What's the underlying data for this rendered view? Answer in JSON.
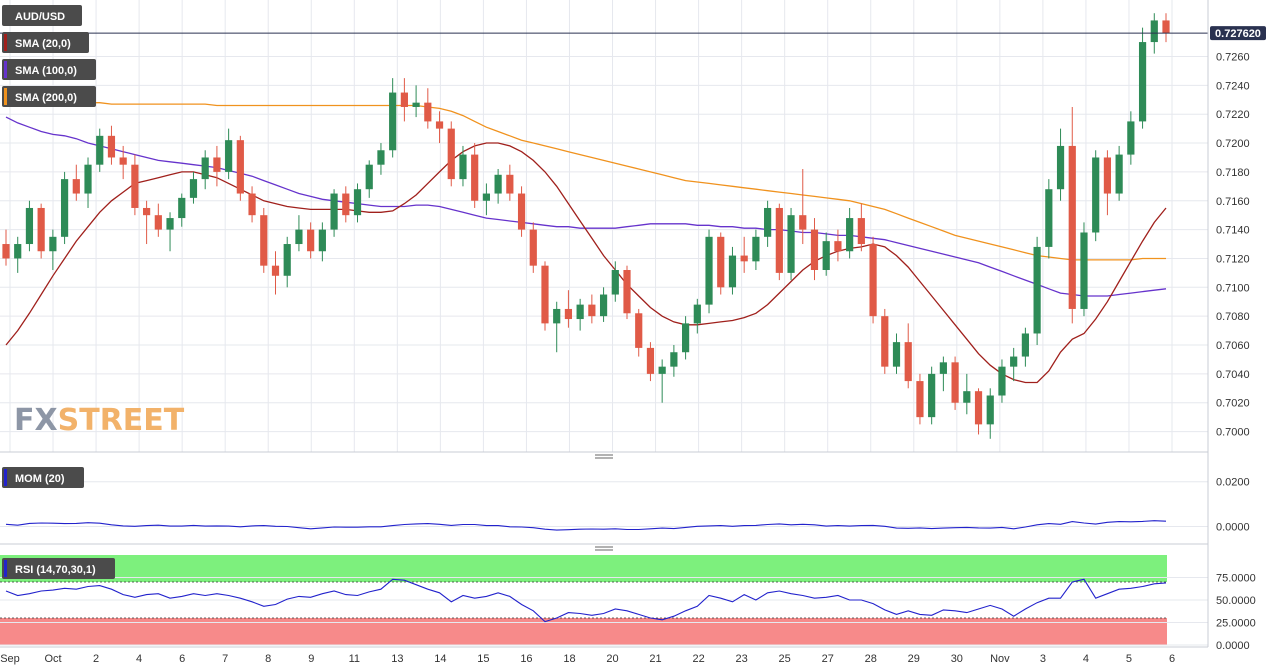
{
  "chart_data": [
    {
      "type": "candlestick",
      "title": "AUD/USD",
      "last_price": "0.727620",
      "watermark": {
        "prefix": "FX",
        "suffix": "STREET"
      },
      "ylim": [
        0.699,
        0.7295
      ],
      "y_ticks": [
        "0.7000",
        "0.7020",
        "0.7040",
        "0.7060",
        "0.7080",
        "0.7100",
        "0.7120",
        "0.7140",
        "0.7160",
        "0.7180",
        "0.7200",
        "0.7220",
        "0.7240",
        "0.7260"
      ],
      "x_labels": [
        "Sep",
        "Oct",
        "2",
        "4",
        "6",
        "7",
        "8",
        "9",
        "11",
        "13",
        "14",
        "15",
        "16",
        "18",
        "20",
        "21",
        "22",
        "23",
        "25",
        "27",
        "28",
        "29",
        "30",
        "Nov",
        "3",
        "4",
        "5",
        "6"
      ],
      "colors": {
        "up": "#2e8b57",
        "down": "#e05a47",
        "sma20": "#a0201c",
        "sma100": "#6633cc",
        "sma200": "#f0921e",
        "last_line": "#2a3250"
      },
      "legend": [
        {
          "name": "SMA (20,0)",
          "color": "#a0201c"
        },
        {
          "name": "SMA (100,0)",
          "color": "#6633cc"
        },
        {
          "name": "SMA (200,0)",
          "color": "#f0921e"
        }
      ],
      "candles": [
        [
          0.713,
          0.714,
          0.7115,
          0.712
        ],
        [
          0.712,
          0.7135,
          0.711,
          0.713
        ],
        [
          0.713,
          0.716,
          0.7125,
          0.7155
        ],
        [
          0.7155,
          0.7158,
          0.712,
          0.7125
        ],
        [
          0.7125,
          0.714,
          0.7112,
          0.7135
        ],
        [
          0.7135,
          0.718,
          0.713,
          0.7175
        ],
        [
          0.7175,
          0.7185,
          0.716,
          0.7165
        ],
        [
          0.7165,
          0.719,
          0.7155,
          0.7185
        ],
        [
          0.7185,
          0.721,
          0.718,
          0.7205
        ],
        [
          0.7205,
          0.7212,
          0.7185,
          0.719
        ],
        [
          0.719,
          0.7198,
          0.7175,
          0.7185
        ],
        [
          0.7185,
          0.7192,
          0.715,
          0.7155
        ],
        [
          0.7155,
          0.716,
          0.713,
          0.715
        ],
        [
          0.715,
          0.7158,
          0.7135,
          0.714
        ],
        [
          0.714,
          0.7152,
          0.7125,
          0.7148
        ],
        [
          0.7148,
          0.7165,
          0.7142,
          0.7162
        ],
        [
          0.7162,
          0.718,
          0.7158,
          0.7175
        ],
        [
          0.7175,
          0.7195,
          0.7168,
          0.719
        ],
        [
          0.719,
          0.7198,
          0.717,
          0.718
        ],
        [
          0.718,
          0.721,
          0.7175,
          0.7202
        ],
        [
          0.7202,
          0.7205,
          0.716,
          0.7165
        ],
        [
          0.7165,
          0.717,
          0.7145,
          0.715
        ],
        [
          0.715,
          0.7155,
          0.711,
          0.7115
        ],
        [
          0.7115,
          0.7125,
          0.7095,
          0.7108
        ],
        [
          0.7108,
          0.7135,
          0.71,
          0.713
        ],
        [
          0.713,
          0.715,
          0.7125,
          0.714
        ],
        [
          0.714,
          0.7145,
          0.712,
          0.7125
        ],
        [
          0.7125,
          0.7145,
          0.7118,
          0.714
        ],
        [
          0.714,
          0.7168,
          0.7135,
          0.7165
        ],
        [
          0.7165,
          0.717,
          0.7145,
          0.715
        ],
        [
          0.715,
          0.7172,
          0.7145,
          0.7168
        ],
        [
          0.7168,
          0.7188,
          0.7162,
          0.7185
        ],
        [
          0.7185,
          0.72,
          0.7178,
          0.7195
        ],
        [
          0.7195,
          0.7245,
          0.719,
          0.7235
        ],
        [
          0.7235,
          0.7245,
          0.7215,
          0.7225
        ],
        [
          0.7225,
          0.724,
          0.7218,
          0.7228
        ],
        [
          0.7228,
          0.7238,
          0.721,
          0.7215
        ],
        [
          0.7215,
          0.7222,
          0.72,
          0.721
        ],
        [
          0.721,
          0.7215,
          0.717,
          0.7175
        ],
        [
          0.7175,
          0.7198,
          0.717,
          0.7192
        ],
        [
          0.7192,
          0.72,
          0.7155,
          0.716
        ],
        [
          0.716,
          0.7172,
          0.715,
          0.7165
        ],
        [
          0.7165,
          0.7182,
          0.7158,
          0.7178
        ],
        [
          0.7178,
          0.7185,
          0.716,
          0.7165
        ],
        [
          0.7165,
          0.717,
          0.7135,
          0.714
        ],
        [
          0.714,
          0.7145,
          0.711,
          0.7115
        ],
        [
          0.7115,
          0.7118,
          0.707,
          0.7075
        ],
        [
          0.7075,
          0.709,
          0.7055,
          0.7085
        ],
        [
          0.7085,
          0.7098,
          0.7072,
          0.7078
        ],
        [
          0.7078,
          0.7092,
          0.707,
          0.7088
        ],
        [
          0.7088,
          0.7095,
          0.7075,
          0.708
        ],
        [
          0.708,
          0.71,
          0.7076,
          0.7095
        ],
        [
          0.7095,
          0.7118,
          0.709,
          0.7112
        ],
        [
          0.7112,
          0.7115,
          0.7078,
          0.7082
        ],
        [
          0.7082,
          0.7085,
          0.7052,
          0.7058
        ],
        [
          0.7058,
          0.7062,
          0.7035,
          0.704
        ],
        [
          0.704,
          0.705,
          0.702,
          0.7045
        ],
        [
          0.7045,
          0.706,
          0.7038,
          0.7055
        ],
        [
          0.7055,
          0.708,
          0.705,
          0.7075
        ],
        [
          0.7075,
          0.7092,
          0.7068,
          0.7088
        ],
        [
          0.7088,
          0.714,
          0.7082,
          0.7135
        ],
        [
          0.7135,
          0.7138,
          0.7095,
          0.71
        ],
        [
          0.71,
          0.7128,
          0.7095,
          0.7122
        ],
        [
          0.7122,
          0.7135,
          0.711,
          0.7118
        ],
        [
          0.7118,
          0.714,
          0.7112,
          0.7135
        ],
        [
          0.7135,
          0.716,
          0.7128,
          0.7155
        ],
        [
          0.7155,
          0.7158,
          0.7105,
          0.711
        ],
        [
          0.711,
          0.7155,
          0.7105,
          0.715
        ],
        [
          0.715,
          0.7182,
          0.713,
          0.714
        ],
        [
          0.714,
          0.7148,
          0.7105,
          0.7112
        ],
        [
          0.7112,
          0.7138,
          0.7108,
          0.7132
        ],
        [
          0.7132,
          0.714,
          0.7118,
          0.7125
        ],
        [
          0.7125,
          0.7155,
          0.712,
          0.7148
        ],
        [
          0.7148,
          0.7158,
          0.7125,
          0.713
        ],
        [
          0.713,
          0.7135,
          0.7075,
          0.708
        ],
        [
          0.708,
          0.7085,
          0.704,
          0.7045
        ],
        [
          0.7045,
          0.7068,
          0.704,
          0.7062
        ],
        [
          0.7062,
          0.7075,
          0.703,
          0.7035
        ],
        [
          0.7035,
          0.704,
          0.7005,
          0.701
        ],
        [
          0.701,
          0.7045,
          0.7005,
          0.704
        ],
        [
          0.704,
          0.7052,
          0.7028,
          0.7048
        ],
        [
          0.7048,
          0.7052,
          0.7015,
          0.702
        ],
        [
          0.702,
          0.704,
          0.7012,
          0.7028
        ],
        [
          0.7028,
          0.703,
          0.6998,
          0.7005
        ],
        [
          0.7005,
          0.703,
          0.6995,
          0.7025
        ],
        [
          0.7025,
          0.705,
          0.702,
          0.7045
        ],
        [
          0.7045,
          0.7058,
          0.7035,
          0.7052
        ],
        [
          0.7052,
          0.7072,
          0.7045,
          0.7068
        ],
        [
          0.7068,
          0.7135,
          0.706,
          0.7128
        ],
        [
          0.7128,
          0.7175,
          0.712,
          0.7168
        ],
        [
          0.7168,
          0.721,
          0.716,
          0.7198
        ],
        [
          0.7198,
          0.7225,
          0.7075,
          0.7085
        ],
        [
          0.7085,
          0.7145,
          0.708,
          0.7138
        ],
        [
          0.7138,
          0.7195,
          0.7132,
          0.719
        ],
        [
          0.719,
          0.7195,
          0.715,
          0.7165
        ],
        [
          0.7165,
          0.7198,
          0.716,
          0.7192
        ],
        [
          0.7192,
          0.7222,
          0.7185,
          0.7215
        ],
        [
          0.7215,
          0.728,
          0.721,
          0.727
        ],
        [
          0.727,
          0.729,
          0.7262,
          0.7285
        ],
        [
          0.7285,
          0.729,
          0.727,
          0.7276
        ]
      ],
      "sma20": [
        0.706,
        0.707,
        0.7082,
        0.7095,
        0.7108,
        0.712,
        0.7132,
        0.7142,
        0.7152,
        0.716,
        0.7166,
        0.7172,
        0.7174,
        0.7176,
        0.7178,
        0.718,
        0.718,
        0.7178,
        0.7176,
        0.7172,
        0.7168,
        0.7164,
        0.716,
        0.7158,
        0.7156,
        0.7155,
        0.7154,
        0.7154,
        0.7154,
        0.7154,
        0.7153,
        0.7152,
        0.7152,
        0.7153,
        0.7158,
        0.7164,
        0.7172,
        0.718,
        0.7188,
        0.7194,
        0.7198,
        0.72,
        0.72,
        0.7198,
        0.7194,
        0.7188,
        0.718,
        0.717,
        0.7158,
        0.7146,
        0.7134,
        0.7122,
        0.7112,
        0.7102,
        0.7094,
        0.7086,
        0.708,
        0.7076,
        0.7074,
        0.7074,
        0.7075,
        0.7076,
        0.7077,
        0.7079,
        0.7082,
        0.7088,
        0.7096,
        0.7104,
        0.7112,
        0.7118,
        0.7122,
        0.7125,
        0.7127,
        0.7128,
        0.713,
        0.7128,
        0.7122,
        0.7114,
        0.7104,
        0.7094,
        0.7084,
        0.7074,
        0.7064,
        0.7054,
        0.7046,
        0.704,
        0.7036,
        0.7034,
        0.7034,
        0.7042,
        0.7055,
        0.7064,
        0.7068,
        0.7078,
        0.709,
        0.7104,
        0.7118,
        0.7132,
        0.7145,
        0.7155
      ],
      "sma100": [
        0.7218,
        0.7214,
        0.7211,
        0.7208,
        0.7206,
        0.7205,
        0.7203,
        0.72,
        0.7198,
        0.7196,
        0.7194,
        0.7192,
        0.719,
        0.7188,
        0.7187,
        0.7186,
        0.7185,
        0.7184,
        0.7183,
        0.7181,
        0.7179,
        0.7177,
        0.7174,
        0.7171,
        0.7168,
        0.7165,
        0.7163,
        0.7161,
        0.716,
        0.7159,
        0.7158,
        0.7157,
        0.7156,
        0.7156,
        0.7156,
        0.7157,
        0.7157,
        0.7156,
        0.7154,
        0.7152,
        0.715,
        0.7148,
        0.7147,
        0.7146,
        0.7145,
        0.7144,
        0.7143,
        0.7142,
        0.7142,
        0.7141,
        0.7141,
        0.7141,
        0.7141,
        0.7142,
        0.7143,
        0.7144,
        0.7144,
        0.7144,
        0.7144,
        0.7143,
        0.7143,
        0.7142,
        0.7142,
        0.7141,
        0.7141,
        0.714,
        0.714,
        0.7139,
        0.7138,
        0.7138,
        0.7137,
        0.7136,
        0.7136,
        0.7135,
        0.7134,
        0.7133,
        0.7131,
        0.7129,
        0.7127,
        0.7125,
        0.7123,
        0.7121,
        0.7119,
        0.7117,
        0.7114,
        0.7111,
        0.7108,
        0.7105,
        0.7102,
        0.7099,
        0.7096,
        0.7095,
        0.7094,
        0.7094,
        0.7094,
        0.7095,
        0.7096,
        0.7097,
        0.7098,
        0.7099
      ],
      "sma200": [
        0.7232,
        0.7231,
        0.723,
        0.723,
        0.7229,
        0.7229,
        0.7228,
        0.7228,
        0.7228,
        0.7227,
        0.7227,
        0.7227,
        0.7227,
        0.7227,
        0.7227,
        0.7227,
        0.7227,
        0.7227,
        0.7226,
        0.7226,
        0.7226,
        0.7226,
        0.7226,
        0.7226,
        0.7226,
        0.7226,
        0.7226,
        0.7226,
        0.7226,
        0.7226,
        0.7226,
        0.7226,
        0.7226,
        0.7226,
        0.7226,
        0.7226,
        0.7225,
        0.7224,
        0.7222,
        0.7219,
        0.7215,
        0.7211,
        0.7208,
        0.7205,
        0.7202,
        0.72,
        0.7198,
        0.7196,
        0.7194,
        0.7192,
        0.719,
        0.7188,
        0.7186,
        0.7184,
        0.7182,
        0.718,
        0.7178,
        0.7176,
        0.7174,
        0.7173,
        0.7172,
        0.7171,
        0.717,
        0.7169,
        0.7168,
        0.7167,
        0.7166,
        0.7165,
        0.7164,
        0.7163,
        0.7162,
        0.7161,
        0.716,
        0.7158,
        0.7156,
        0.7154,
        0.7151,
        0.7148,
        0.7145,
        0.7142,
        0.7139,
        0.7136,
        0.7134,
        0.7132,
        0.713,
        0.7128,
        0.7126,
        0.7124,
        0.7122,
        0.7121,
        0.712,
        0.7119,
        0.7119,
        0.7119,
        0.7119,
        0.7119,
        0.7119,
        0.712,
        0.712,
        0.712
      ]
    },
    {
      "type": "line",
      "title": "MOM (20)",
      "color": "#2222cc",
      "ylim": [
        -0.006,
        0.027
      ],
      "y_ticks": [
        "0.0200",
        "0.0000"
      ],
      "values": [
        0.001,
        0.0006,
        0.0014,
        0.0016,
        0.0015,
        0.0013,
        0.0014,
        0.0017,
        0.0015,
        0.0008,
        0.0003,
        0.0001,
        0.0004,
        0.0006,
        0.0002,
        0.0002,
        0.0005,
        0.0002,
        0.0003,
        0.0002,
        -0.0001,
        0.0003,
        0.0004,
        0.0001,
        0.0,
        -0.0005,
        -0.001,
        -0.0006,
        -0.0002,
        -0.0003,
        -0.0003,
        -0.0001,
        -0.0001,
        0.0004,
        0.0009,
        0.0012,
        0.0013,
        0.001,
        0.0005,
        0.0009,
        0.0009,
        0.0004,
        0.0004,
        -0.0001,
        -0.0002,
        -0.0005,
        -0.0012,
        -0.0016,
        -0.0014,
        -0.0012,
        -0.0011,
        -0.0012,
        -0.001,
        -0.0013,
        -0.0013,
        -0.001,
        -0.0007,
        -0.0009,
        -0.0004,
        0.0001,
        0.0003,
        0.0004,
        0.0001,
        0.0004,
        0.0005,
        0.0009,
        0.0012,
        0.0008,
        0.001,
        0.0008,
        0.0002,
        0.0004,
        0.0002,
        0.0004,
        0.0005,
        0.0001,
        -0.0007,
        -0.0008,
        -0.0006,
        -0.0009,
        -0.0007,
        -0.0005,
        -0.0004,
        -0.0006,
        -0.0007,
        -0.0004,
        -0.001,
        -0.0002,
        0.0008,
        0.0013,
        0.001,
        0.0022,
        0.0016,
        0.0011,
        0.0019,
        0.0022,
        0.0021,
        0.0023,
        0.0026,
        0.0024
      ]
    },
    {
      "type": "line",
      "title": "RSI (14,70,30,1)",
      "color": "#2222cc",
      "ylim": [
        0,
        100
      ],
      "overbought": 70,
      "oversold": 30,
      "band_colors": {
        "overbought": "#7df07d",
        "oversold": "#f78a8a"
      },
      "y_ticks": [
        "75.0000",
        "50.0000",
        "25.0000",
        "0.0000"
      ],
      "values": [
        60,
        55,
        57,
        60,
        61,
        63,
        62,
        65,
        66,
        62,
        56,
        53,
        56,
        57,
        52,
        54,
        57,
        55,
        57,
        55,
        52,
        48,
        43,
        45,
        51,
        54,
        53,
        57,
        60,
        56,
        55,
        59,
        62,
        73,
        72,
        67,
        62,
        58,
        48,
        55,
        52,
        54,
        58,
        54,
        45,
        38,
        26,
        30,
        36,
        35,
        33,
        35,
        40,
        38,
        34,
        30,
        28,
        32,
        38,
        43,
        55,
        52,
        48,
        56,
        50,
        58,
        60,
        57,
        55,
        52,
        53,
        55,
        50,
        50,
        46,
        39,
        34,
        38,
        34,
        33,
        39,
        38,
        36,
        40,
        44,
        40,
        32,
        40,
        47,
        52,
        52,
        70,
        73,
        52,
        57,
        62,
        63,
        65,
        68,
        69
      ]
    }
  ]
}
